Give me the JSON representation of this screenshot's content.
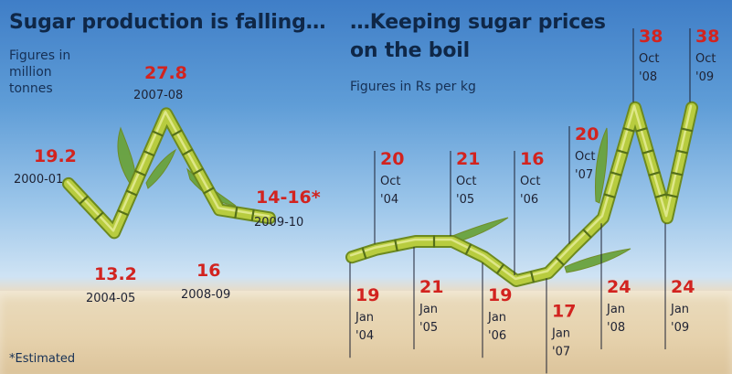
{
  "colors": {
    "title": "#0f2747",
    "value": "#d2231f",
    "label": "#1e2233",
    "cane": "#b8cc3f",
    "cane_dark": "#6d8a1f",
    "leaf": "#6aa33d",
    "sky_top": "#3f7ec7",
    "soil": "#e6d2ad"
  },
  "left": {
    "title": "Sugar production is falling…",
    "subtitle_lines": [
      "Figures in",
      "million",
      "tonnes"
    ]
  },
  "right": {
    "title_line1": "…Keeping sugar prices",
    "title_line2": "on the boil",
    "subtitle": "Figures in Rs per kg"
  },
  "footnote": "*Estimated",
  "chart_data": [
    {
      "type": "line",
      "title": "Sugar production is falling…",
      "ylabel": "Figures in million tonnes",
      "x": [
        "2000-01",
        "2004-05",
        "2007-08",
        "2008-09",
        "2009-10"
      ],
      "value_labels": [
        "19.2",
        "13.2",
        "27.8",
        "16",
        "14-16*"
      ],
      "y": [
        19.2,
        13.2,
        27.8,
        16,
        15
      ],
      "ylim": [
        10,
        30
      ]
    },
    {
      "type": "line",
      "title": "…Keeping sugar prices on the boil",
      "ylabel": "Figures in Rs per kg",
      "x": [
        "Jan '04",
        "Oct '04",
        "Jan '05",
        "Oct '05",
        "Jan '06",
        "Oct '06",
        "Jan '07",
        "Oct '07",
        "Jan '08",
        "Oct '08",
        "Jan '09",
        "Oct '09"
      ],
      "value_labels": [
        "19",
        "20",
        "21",
        "21",
        "19",
        "16",
        "17",
        "20",
        "24",
        "38",
        "24",
        "38"
      ],
      "y": [
        19,
        20,
        21,
        21,
        19,
        16,
        17,
        20,
        24,
        38,
        24,
        38
      ],
      "ylim": [
        14,
        40
      ]
    }
  ]
}
